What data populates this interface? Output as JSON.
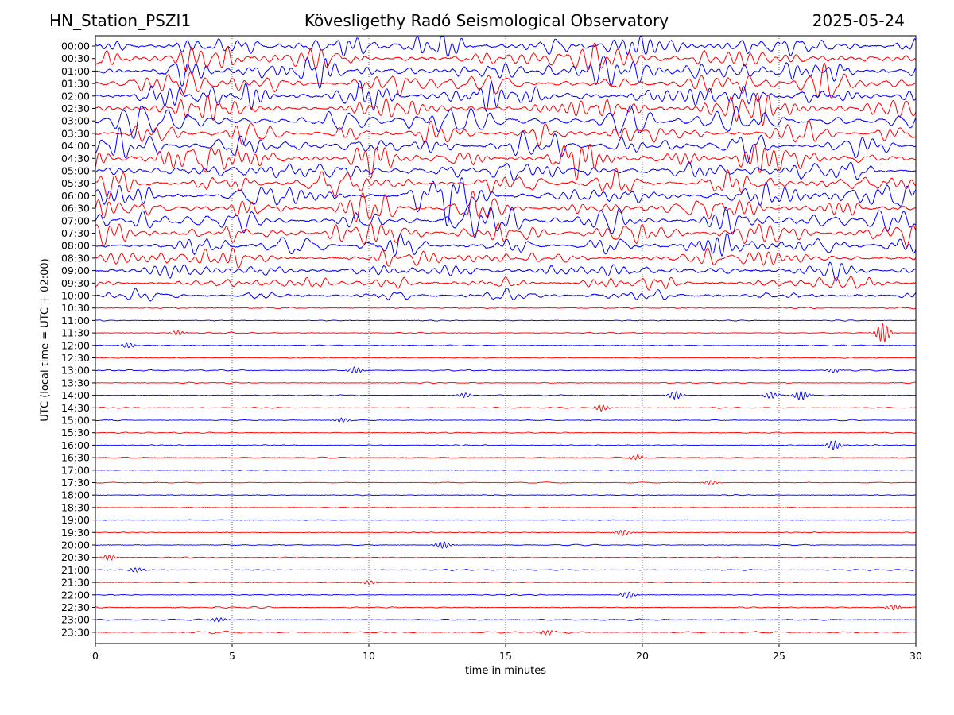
{
  "header": {
    "station": "HN_Station_PSZI1",
    "observatory": "Kövesligethy Radó Seismological Observatory",
    "date": "2025-05-24"
  },
  "chart_data": {
    "type": "line",
    "title": "Kövesligethy Radó Seismological Observatory",
    "xlabel": "time in minutes",
    "ylabel": "UTC (local time = UTC + 02:00)",
    "xlim": [
      0,
      30
    ],
    "xticks": [
      0,
      5,
      10,
      15,
      20,
      25,
      30
    ],
    "grid_x": [
      5,
      10,
      15,
      20,
      25
    ],
    "rows": [
      "00:00",
      "00:30",
      "01:00",
      "01:30",
      "02:00",
      "02:30",
      "03:00",
      "03:30",
      "04:00",
      "04:30",
      "05:00",
      "05:30",
      "06:00",
      "06:30",
      "07:00",
      "07:30",
      "08:00",
      "08:30",
      "09:00",
      "09:30",
      "10:00",
      "10:30",
      "11:00",
      "11:30",
      "12:00",
      "12:30",
      "13:00",
      "13:30",
      "14:00",
      "14:30",
      "15:00",
      "15:30",
      "16:00",
      "16:30",
      "17:00",
      "17:30",
      "18:00",
      "18:30",
      "19:00",
      "19:30",
      "20:00",
      "20:30",
      "21:00",
      "21:30",
      "22:00",
      "22:30",
      "23:00",
      "23:30"
    ],
    "colors": [
      "#0000ff",
      "#ff0000"
    ],
    "activity": [
      1.0,
      1.0,
      1.0,
      1.0,
      1.0,
      1.0,
      1.0,
      1.0,
      1.0,
      1.0,
      1.0,
      1.0,
      1.0,
      1.0,
      0.95,
      0.9,
      0.8,
      0.7,
      0.55,
      0.5,
      0.35,
      0.05,
      0.04,
      0.04,
      0.04,
      0.04,
      0.05,
      0.04,
      0.05,
      0.05,
      0.04,
      0.04,
      0.04,
      0.04,
      0.03,
      0.04,
      0.03,
      0.03,
      0.03,
      0.04,
      0.04,
      0.05,
      0.05,
      0.04,
      0.04,
      0.05,
      0.06,
      0.06
    ],
    "events": [
      {
        "row": "11:30",
        "t": 3.0,
        "a": 0.6
      },
      {
        "row": "11:30",
        "t": 28.8,
        "a": 2.5
      },
      {
        "row": "12:00",
        "t": 1.2,
        "a": 0.6
      },
      {
        "row": "13:00",
        "t": 9.5,
        "a": 0.8
      },
      {
        "row": "13:00",
        "t": 27.0,
        "a": 0.5
      },
      {
        "row": "14:00",
        "t": 13.5,
        "a": 0.6
      },
      {
        "row": "14:00",
        "t": 21.2,
        "a": 1.0
      },
      {
        "row": "14:00",
        "t": 24.7,
        "a": 0.8
      },
      {
        "row": "14:00",
        "t": 25.8,
        "a": 1.2
      },
      {
        "row": "14:30",
        "t": 18.5,
        "a": 0.8
      },
      {
        "row": "15:00",
        "t": 9.0,
        "a": 0.5
      },
      {
        "row": "16:00",
        "t": 27.0,
        "a": 1.2
      },
      {
        "row": "16:30",
        "t": 19.8,
        "a": 0.6
      },
      {
        "row": "17:30",
        "t": 22.5,
        "a": 0.5
      },
      {
        "row": "19:30",
        "t": 19.3,
        "a": 0.7
      },
      {
        "row": "20:00",
        "t": 12.7,
        "a": 0.9
      },
      {
        "row": "20:30",
        "t": 0.5,
        "a": 0.7
      },
      {
        "row": "21:00",
        "t": 1.5,
        "a": 0.6
      },
      {
        "row": "21:30",
        "t": 10.0,
        "a": 0.5
      },
      {
        "row": "22:00",
        "t": 19.5,
        "a": 0.8
      },
      {
        "row": "22:30",
        "t": 29.2,
        "a": 0.7
      },
      {
        "row": "23:00",
        "t": 4.5,
        "a": 0.6
      },
      {
        "row": "23:30",
        "t": 16.5,
        "a": 0.6
      }
    ]
  }
}
